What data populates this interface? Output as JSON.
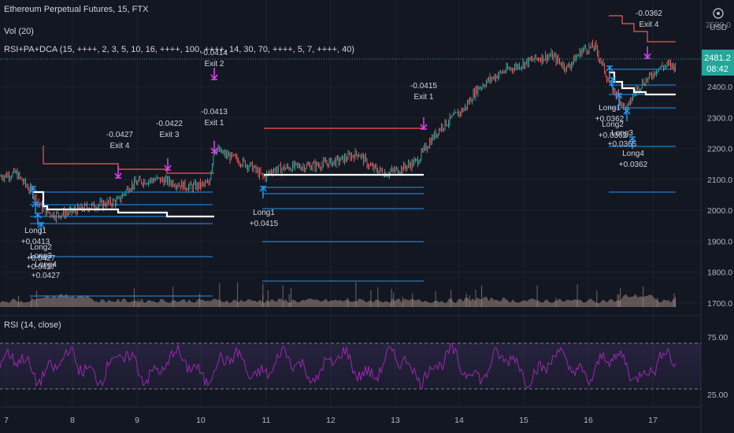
{
  "header": {
    "symbol_line": "Ethereum Perpetual Futures, 15, FTX",
    "volume_line": "Vol (20)",
    "strategy_line": "RSI+PA+DCA (15, ++++, 2, 3, 5, 10, 16, ++++, 100, ++++, 14, 30, 70, ++++, 5, 7, ++++, 40)",
    "rsi_line": "RSI (14, close)",
    "currency": "USD"
  },
  "price_badge": {
    "price": "2481.2",
    "countdown": "08:42"
  },
  "price_axis": [
    "2400.0",
    "2300.0",
    "2200.0",
    "2100.0",
    "2000.0",
    "1900.0",
    "1800.0",
    "1700.0"
  ],
  "price_axis_partial_top": "2500.0",
  "rsi_axis": [
    "75.00",
    "25.00"
  ],
  "time_axis": [
    "7",
    "8",
    "9",
    "10",
    "11",
    "12",
    "13",
    "14",
    "15",
    "16",
    "17"
  ],
  "trade_labels": [
    {
      "name": "exit4-left",
      "lines": [
        "-0.0427",
        "Exit 4"
      ]
    },
    {
      "name": "exit3-left",
      "lines": [
        "-0.0422",
        "Exit 3"
      ]
    },
    {
      "name": "exit2-left",
      "lines": [
        "-0.0414",
        "Exit 2"
      ]
    },
    {
      "name": "exit1-left",
      "lines": [
        "-0.0413",
        "Exit 1"
      ]
    },
    {
      "name": "exit1-mid",
      "lines": [
        "-0.0415",
        "Exit 1"
      ]
    },
    {
      "name": "exit4-right",
      "lines": [
        "-0.0362",
        "Exit 4"
      ]
    },
    {
      "name": "long1-left",
      "lines": [
        "Long1",
        "+0.0413"
      ]
    },
    {
      "name": "long2-left",
      "lines": [
        "Long2",
        "+0.0427"
      ]
    },
    {
      "name": "long3-left",
      "lines": [
        "Long3",
        "+0.0427"
      ]
    },
    {
      "name": "long4-left",
      "lines": [
        "Long4",
        "+0.0427"
      ]
    },
    {
      "name": "long1-mid",
      "lines": [
        "Long1",
        "+0.0415"
      ]
    },
    {
      "name": "long1-right",
      "lines": [
        "Long1",
        "+0.0362"
      ]
    },
    {
      "name": "long2-right",
      "lines": [
        "Long2",
        "+0.0362"
      ]
    },
    {
      "name": "long3-right",
      "lines": [
        "Long3",
        "+0.0365"
      ]
    },
    {
      "name": "long4-right",
      "lines": [
        "Long4",
        "+0.0362"
      ]
    }
  ],
  "colors": {
    "background": "#131722",
    "grid": "#1e222d",
    "up": "#26a69a",
    "down": "#ef5350",
    "exit_marker": "#e040fb",
    "entry_marker": "#2196f3",
    "stop_line": "#ff5252",
    "avg_line": "#ffffff",
    "dca_line": "#2196f3",
    "rsi_line": "#9c27b0",
    "volume": "#a1887f",
    "price_badge": "#26a69a"
  },
  "icons": {
    "settings": "gear-icon",
    "currency": "currency-label"
  }
}
